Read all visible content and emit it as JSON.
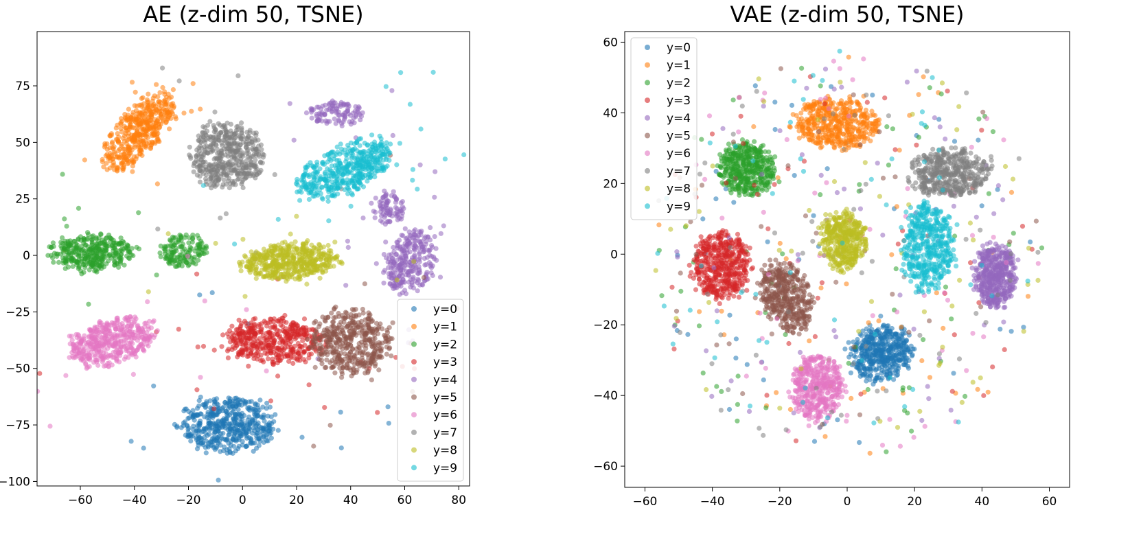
{
  "chart_data": [
    {
      "type": "scatter",
      "title": "AE (z-dim 50, TSNE)",
      "xlabel": "",
      "ylabel": "",
      "xlim": [
        -76,
        84
      ],
      "ylim": [
        -102,
        99
      ],
      "xticks": [
        -60,
        -40,
        -20,
        0,
        20,
        40,
        60,
        80
      ],
      "yticks": [
        -100,
        -75,
        -50,
        -25,
        0,
        25,
        50,
        75
      ],
      "xtick_labels": [
        "−60",
        "−40",
        "−20",
        "0",
        "20",
        "40",
        "60",
        "80"
      ],
      "ytick_labels": [
        "−100",
        "−75",
        "−50",
        "−25",
        "0",
        "25",
        "50",
        "75"
      ],
      "grid": false,
      "legend_position": "lower-right",
      "series": [
        {
          "name": "y=0",
          "color": "#1f77b4",
          "clusters": [
            [
              -5,
              -75,
              34,
              24,
              0
            ]
          ]
        },
        {
          "name": "y=1",
          "color": "#ff7f0e",
          "clusters": [
            [
              -38,
              55,
              16,
              40,
              -0.6
            ]
          ]
        },
        {
          "name": "y=2",
          "color": "#2ca02c",
          "clusters": [
            [
              -55,
              1,
              30,
              16,
              0
            ],
            [
              -22,
              2,
              16,
              14,
              0
            ]
          ]
        },
        {
          "name": "y=3",
          "color": "#d62728",
          "clusters": [
            [
              12,
              -38,
              36,
              20,
              0
            ]
          ]
        },
        {
          "name": "y=4",
          "color": "#9467bd",
          "clusters": [
            [
              35,
              63,
              20,
              11,
              0
            ],
            [
              62,
              -2,
              18,
              30,
              -0.2
            ],
            [
              54,
              20,
              12,
              14,
              0
            ]
          ]
        },
        {
          "name": "y=5",
          "color": "#8c564b",
          "clusters": [
            [
              40,
              -38,
              28,
              28,
              0.75
            ]
          ]
        },
        {
          "name": "y=6",
          "color": "#e377c2",
          "clusters": [
            [
              -48,
              -38,
              34,
              18,
              0.35
            ]
          ]
        },
        {
          "name": "y=7",
          "color": "#7f7f7f",
          "clusters": [
            [
              -6,
              44,
              26,
              28,
              0
            ]
          ]
        },
        {
          "name": "y=8",
          "color": "#bcbd22",
          "clusters": [
            [
              18,
              -3,
              36,
              16,
              0.1
            ]
          ]
        },
        {
          "name": "y=9",
          "color": "#17becf",
          "clusters": [
            [
              38,
              38,
              38,
              20,
              0.55
            ]
          ]
        }
      ],
      "point_counts": [
        500,
        450,
        500,
        450,
        480,
        450,
        450,
        480,
        500,
        480
      ]
    },
    {
      "type": "scatter",
      "title": "VAE (z-dim 50, TSNE)",
      "xlabel": "",
      "ylabel": "",
      "xlim": [
        -66,
        66
      ],
      "ylim": [
        -66,
        63
      ],
      "xticks": [
        -60,
        -40,
        -20,
        0,
        20,
        40,
        60
      ],
      "yticks": [
        -60,
        -40,
        -20,
        0,
        20,
        40,
        60
      ],
      "xtick_labels": [
        "−60",
        "−40",
        "−20",
        "0",
        "20",
        "40",
        "60"
      ],
      "ytick_labels": [
        "−60",
        "−40",
        "−20",
        "0",
        "20",
        "40",
        "60"
      ],
      "grid": false,
      "legend_position": "upper-left",
      "series": [
        {
          "name": "y=0",
          "color": "#1f77b4",
          "clusters": [
            [
              10,
              -28,
              18,
              15,
              0.3
            ]
          ]
        },
        {
          "name": "y=1",
          "color": "#ff7f0e",
          "clusters": [
            [
              -3,
              37,
              24,
              14,
              0
            ]
          ]
        },
        {
          "name": "y=2",
          "color": "#2ca02c",
          "clusters": [
            [
              -30,
              24,
              16,
              15,
              0
            ]
          ]
        },
        {
          "name": "y=3",
          "color": "#d62728",
          "clusters": [
            [
              -37,
              -3,
              17,
              19,
              0
            ]
          ]
        },
        {
          "name": "y=4",
          "color": "#9467bd",
          "clusters": [
            [
              44,
              -6,
              12,
              18,
              0
            ]
          ]
        },
        {
          "name": "y=5",
          "color": "#8c564b",
          "clusters": [
            [
              -18,
              -12,
              14,
              20,
              0.4
            ]
          ]
        },
        {
          "name": "y=6",
          "color": "#e377c2",
          "clusters": [
            [
              -9,
              -38,
              15,
              19,
              0
            ]
          ]
        },
        {
          "name": "y=7",
          "color": "#7f7f7f",
          "clusters": [
            [
              30,
              23,
              23,
              13,
              0
            ]
          ]
        },
        {
          "name": "y=8",
          "color": "#bcbd22",
          "clusters": [
            [
              -1,
              4,
              13,
              16,
              0
            ]
          ]
        },
        {
          "name": "y=9",
          "color": "#17becf",
          "clusters": [
            [
              24,
              2,
              15,
              24,
              0
            ]
          ]
        }
      ],
      "background_spread": [
        58,
        58
      ],
      "point_counts": [
        500,
        500,
        500,
        500,
        500,
        450,
        480,
        500,
        450,
        500
      ]
    }
  ],
  "legend": {
    "labels": [
      "y=0",
      "y=1",
      "y=2",
      "y=3",
      "y=4",
      "y=5",
      "y=6",
      "y=7",
      "y=8",
      "y=9"
    ]
  }
}
